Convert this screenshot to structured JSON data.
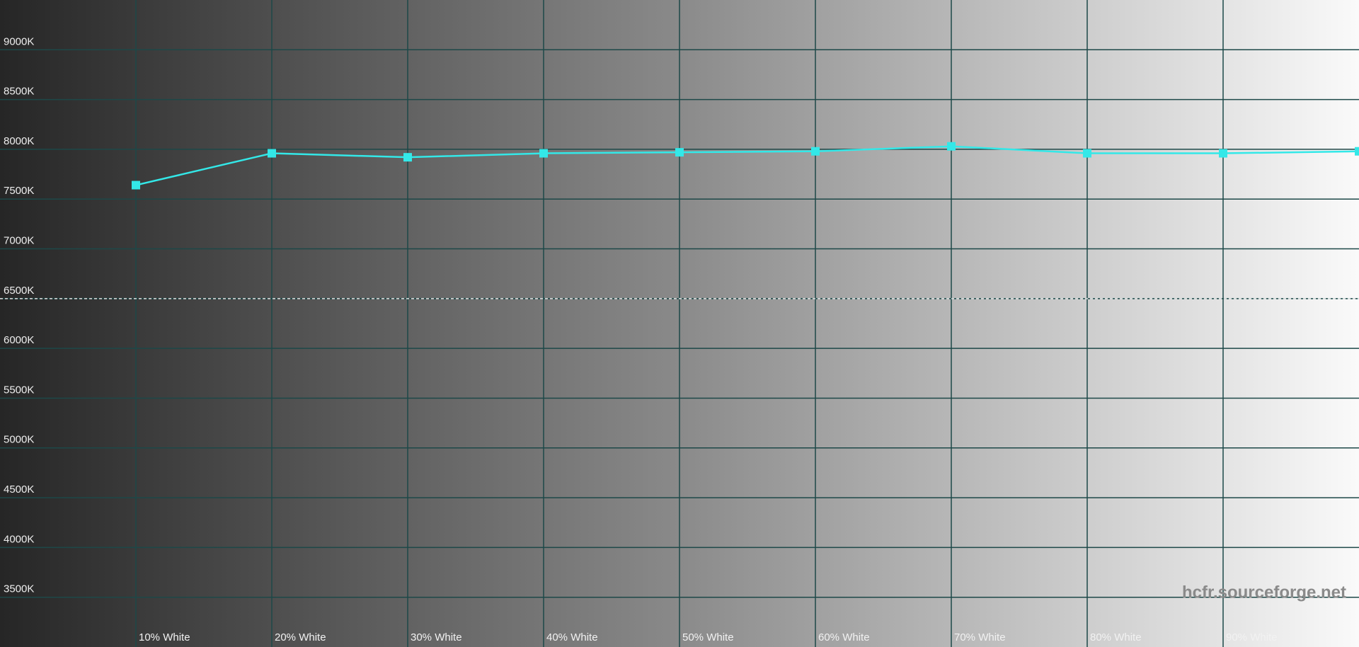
{
  "chart_data": {
    "type": "line",
    "x": [
      10,
      20,
      30,
      40,
      50,
      60,
      70,
      80,
      90,
      100
    ],
    "series": [
      {
        "color": "#33e8e8",
        "values": [
          7640,
          7960,
          7920,
          7960,
          7970,
          7980,
          8030,
          7960,
          7960,
          7980
        ]
      }
    ],
    "xlim": [
      0,
      100
    ],
    "xticks": [
      {
        "value": 10,
        "label": "10% White"
      },
      {
        "value": 20,
        "label": "20% White"
      },
      {
        "value": 30,
        "label": "30% White"
      },
      {
        "value": 40,
        "label": "40% White"
      },
      {
        "value": 50,
        "label": "50% White"
      },
      {
        "value": 60,
        "label": "60% White"
      },
      {
        "value": 70,
        "label": "70% White"
      },
      {
        "value": 80,
        "label": "80% White"
      },
      {
        "value": 90,
        "label": "90% White"
      }
    ],
    "ylim": [
      3000,
      9500
    ],
    "yticks": [
      {
        "value": 3500,
        "label": "3500K"
      },
      {
        "value": 4000,
        "label": "4000K"
      },
      {
        "value": 4500,
        "label": "4500K"
      },
      {
        "value": 5000,
        "label": "5000K"
      },
      {
        "value": 5500,
        "label": "5500K"
      },
      {
        "value": 6000,
        "label": "6000K"
      },
      {
        "value": 6500,
        "label": "6500K"
      },
      {
        "value": 7000,
        "label": "7000K"
      },
      {
        "value": 7500,
        "label": "7500K"
      },
      {
        "value": 8000,
        "label": "8000K"
      },
      {
        "value": 8500,
        "label": "8500K"
      },
      {
        "value": 9000,
        "label": "9000K"
      }
    ],
    "reference": 6500,
    "grid": true,
    "watermark": "hcfr.sourceforge.net"
  }
}
